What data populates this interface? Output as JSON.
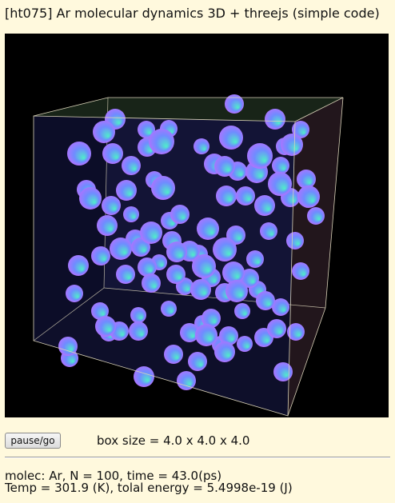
{
  "title": "[ht075] Ar molecular dynamics 3D + threejs (simple code)",
  "controls": {
    "pause_label": "pause/go",
    "box_size_text": "box size = 4.0 x 4.0 x 4.0"
  },
  "status": {
    "line1": "molec: Ar, N = 100, time = 43.0(ps)",
    "line2": "Temp = 301.9 (K), tolal energy = 5.4998e-19 (J)"
  },
  "simulation": {
    "background_color": "#000000",
    "box_face_color": "#11123a",
    "box_edge_color": "#d9d2b8",
    "sphere_colors": [
      "#d066ff",
      "#6f8cff",
      "#4ef0c8"
    ]
  }
}
